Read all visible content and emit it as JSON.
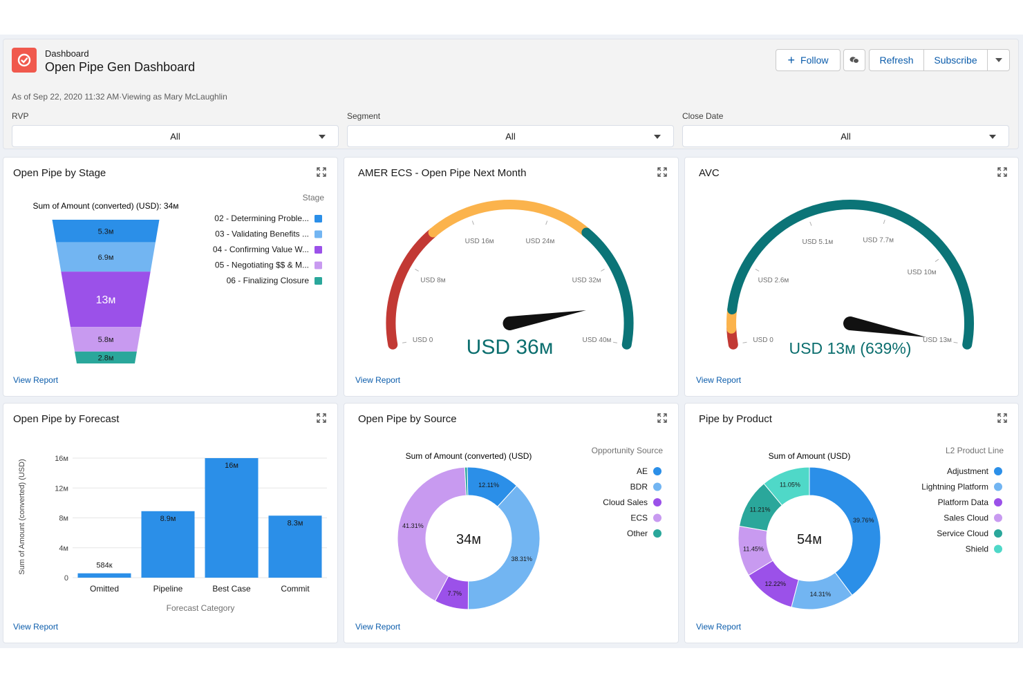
{
  "header": {
    "object_type": "Dashboard",
    "title": "Open Pipe Gen Dashboard",
    "meta": "As of Sep 22, 2020 11:32 AM·Viewing as Mary McLaughlin",
    "buttons": {
      "follow": "Follow",
      "refresh": "Refresh",
      "subscribe": "Subscribe"
    },
    "icons": {
      "app": "dashboard-gauge-icon",
      "follow": "plus-icon",
      "share": "chat-bubbles-icon",
      "more": "chevron-down-icon"
    }
  },
  "filters": [
    {
      "label": "RVP",
      "value": "All"
    },
    {
      "label": "Segment",
      "value": "All"
    },
    {
      "label": "Close Date",
      "value": "All"
    }
  ],
  "colors": {
    "blue": "#2b8fe8",
    "light_blue": "#72b5f2",
    "purple": "#9b51e9",
    "lavender": "#c89af0",
    "teal": "#2aa79b",
    "aqua": "#4fd8c8",
    "red": "#c23934",
    "orange": "#fbb34c",
    "green": "#0b7477"
  },
  "cards": {
    "stage": {
      "title": "Open Pipe by Stage",
      "view_report": "View Report",
      "chart_data": {
        "type": "funnel",
        "title": "Sum of Amount (converted) (USD): 34м",
        "legend_title": "Stage",
        "legend_placement": "right",
        "categories": [
          "02 - Determining Proble...",
          "03 - Validating Benefits ...",
          "04 - Confirming Value W...",
          "05 - Negotiating $$ & M...",
          "06 - Finalizing Closure"
        ],
        "values": [
          5.3,
          6.9,
          13,
          5.8,
          2.8
        ],
        "value_labels": [
          "5.3м",
          "6.9м",
          "13м",
          "5.8м",
          "2.8м"
        ],
        "colors": [
          "#2b8fe8",
          "#72b5f2",
          "#9b51e9",
          "#c89af0",
          "#2aa79b"
        ]
      }
    },
    "amer": {
      "title": "AMER ECS - Open Pipe Next Month",
      "view_report": "View Report",
      "chart_data": {
        "type": "gauge",
        "min": 0,
        "max": 40,
        "value": 36,
        "value_label": "USD 36м",
        "ticks": [
          0,
          8,
          16,
          24,
          32,
          40
        ],
        "tick_labels": [
          "USD 0",
          "USD 8м",
          "USD 16м",
          "USD 24м",
          "USD 32м",
          "USD 40м"
        ],
        "bands": [
          {
            "from": 0,
            "to": 12,
            "color": "#c23934"
          },
          {
            "from": 12,
            "to": 28,
            "color": "#fbb34c"
          },
          {
            "from": 28,
            "to": 40,
            "color": "#0b7477"
          }
        ]
      }
    },
    "avc": {
      "title": "AVC",
      "view_report": "View Report",
      "chart_data": {
        "type": "gauge",
        "min": 0,
        "max": 13,
        "value": 13,
        "value_label": "USD 13м (639%)",
        "ticks": [
          0,
          2.6,
          5.1,
          7.7,
          10,
          13
        ],
        "tick_labels": [
          "USD 0",
          "USD 2.6м",
          "USD 5.1м",
          "USD 7.7м",
          "USD 10м",
          "USD 13м"
        ],
        "bands": [
          {
            "from": 0,
            "to": 0.5,
            "color": "#c23934"
          },
          {
            "from": 0.5,
            "to": 1.1,
            "color": "#fbb34c"
          },
          {
            "from": 1.1,
            "to": 13,
            "color": "#0b7477"
          }
        ]
      }
    },
    "forecast": {
      "title": "Open Pipe by Forecast",
      "view_report": "View Report",
      "chart_data": {
        "type": "bar",
        "categories": [
          "Omitted",
          "Pipeline",
          "Best Case",
          "Commit"
        ],
        "values": [
          0.584,
          8.9,
          16,
          8.3
        ],
        "value_labels": [
          "584к",
          "8.9м",
          "16м",
          "8.3м"
        ],
        "xlabel": "Forecast Category",
        "ylabel": "Sum of Amount (converted) (USD)",
        "ylim": [
          0,
          16
        ],
        "yticks": [
          0,
          4,
          8,
          12,
          16
        ],
        "ytick_labels": [
          "0",
          "4м",
          "8м",
          "12м",
          "16м"
        ],
        "grid": true,
        "color": "#2b8fe8"
      }
    },
    "source": {
      "title": "Open Pipe by Source",
      "view_report": "View Report",
      "chart_data": {
        "type": "donut",
        "title": "Sum of Amount (converted) (USD)",
        "center_label": "34м",
        "legend_title": "Opportunity Source",
        "legend_placement": "right",
        "categories": [
          "AE",
          "BDR",
          "Cloud Sales",
          "ECS",
          "Other"
        ],
        "values": [
          12.11,
          38.31,
          7.7,
          41.31,
          0.57
        ],
        "value_labels": [
          "12.11%",
          "38.31%",
          "7.7%",
          "41.31%",
          ""
        ],
        "colors": [
          "#2b8fe8",
          "#72b5f2",
          "#9b51e9",
          "#c89af0",
          "#2aa79b"
        ]
      }
    },
    "product": {
      "title": "Pipe by Product",
      "view_report": "View Report",
      "chart_data": {
        "type": "donut",
        "title": "Sum of Amount (USD)",
        "center_label": "54м",
        "legend_title": "L2 Product Line",
        "legend_placement": "right",
        "categories": [
          "Adjustment",
          "Lightning Platform",
          "Platform Data",
          "Sales Cloud",
          "Service Cloud",
          "Shield"
        ],
        "values": [
          39.76,
          14.31,
          12.22,
          11.45,
          11.21,
          11.05
        ],
        "value_labels": [
          "39.76%",
          "14.31%",
          "12.22%",
          "11.45%",
          "11.21%",
          "11.05%"
        ],
        "colors": [
          "#2b8fe8",
          "#72b5f2",
          "#9b51e9",
          "#c89af0",
          "#2aa79b",
          "#4fd8c8"
        ]
      }
    }
  }
}
